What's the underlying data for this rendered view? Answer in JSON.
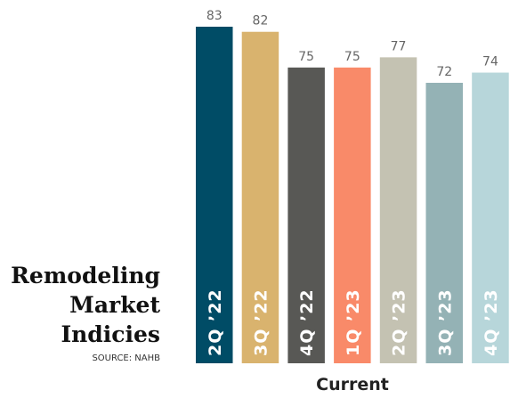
{
  "chart_data": {
    "type": "bar",
    "title": "Remodeling Market Indicies",
    "source": "SOURCE: NAHB",
    "xlabel": "Current",
    "categories": [
      "2Q ’22",
      "3Q ’22",
      "4Q ’22",
      "1Q ’23",
      "2Q ’23",
      "3Q ’23",
      "4Q ’23"
    ],
    "values": [
      83,
      82,
      75,
      75,
      77,
      72,
      74
    ],
    "colors": [
      "#004c66",
      "#d9b36e",
      "#585855",
      "#f98a69",
      "#c4c2b2",
      "#94b2b5",
      "#b7d6da"
    ],
    "ylim": [
      17,
      83
    ]
  }
}
